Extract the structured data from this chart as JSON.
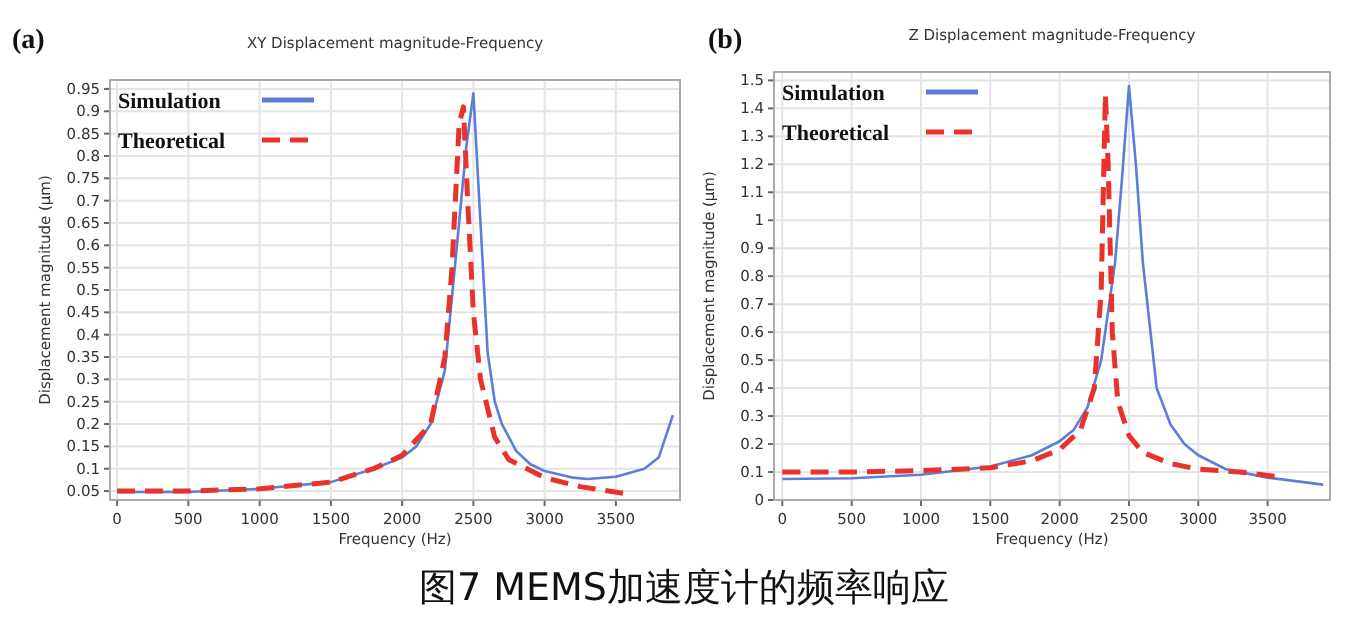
{
  "chart_data": [
    {
      "type": "line",
      "title": "XY Displacement magnitude-Frequency",
      "xlabel": "Frequency (Hz)",
      "ylabel": "Displacement magnitude (μm)",
      "annotations": [
        "(a)",
        "图7 MEMS加速度计的频率响应"
      ],
      "xlim": [
        -50,
        3950
      ],
      "xticks": [
        0,
        500,
        1000,
        1500,
        2000,
        2500,
        3000,
        3500
      ],
      "ylim": [
        0.03,
        0.97
      ],
      "yticks": [
        0.05,
        0.1,
        0.15,
        0.2,
        0.25,
        0.3,
        0.35,
        0.4,
        0.45,
        0.5,
        0.55,
        0.6,
        0.65,
        0.7,
        0.75,
        0.8,
        0.85,
        0.9,
        0.95
      ],
      "grid": true,
      "legend": "top left",
      "series": [
        {
          "name": "Simulation",
          "color": "#5b7fd6",
          "line_style": "solid",
          "x": [
            0,
            500,
            1000,
            1500,
            1800,
            2000,
            2100,
            2200,
            2300,
            2400,
            2450,
            2500,
            2550,
            2600,
            2650,
            2700,
            2800,
            2900,
            3000,
            3200,
            3300,
            3500,
            3700,
            3800,
            3900
          ],
          "values": [
            0.048,
            0.048,
            0.055,
            0.07,
            0.1,
            0.125,
            0.15,
            0.2,
            0.32,
            0.65,
            0.82,
            0.94,
            0.65,
            0.36,
            0.25,
            0.2,
            0.14,
            0.11,
            0.095,
            0.08,
            0.077,
            0.082,
            0.1,
            0.125,
            0.22
          ]
        },
        {
          "name": "Theoretical",
          "color": "#e8322b",
          "line_style": "dashed",
          "x": [
            0,
            500,
            1000,
            1500,
            1800,
            2000,
            2200,
            2300,
            2350,
            2400,
            2430,
            2460,
            2500,
            2550,
            2650,
            2750,
            3000,
            3250,
            3550
          ],
          "values": [
            0.05,
            0.05,
            0.055,
            0.07,
            0.1,
            0.13,
            0.2,
            0.35,
            0.55,
            0.87,
            0.91,
            0.7,
            0.45,
            0.3,
            0.17,
            0.12,
            0.08,
            0.06,
            0.045
          ]
        }
      ]
    },
    {
      "type": "line",
      "title": "Z Displacement magnitude-Frequency",
      "xlabel": "Frequency (Hz)",
      "ylabel": "Displacement magnitude (μm)",
      "annotations": [
        "(b)"
      ],
      "xlim": [
        -60,
        3950
      ],
      "xticks": [
        0,
        500,
        1000,
        1500,
        2000,
        2500,
        3000,
        3500
      ],
      "ylim": [
        0,
        1.53
      ],
      "yticks": [
        0,
        0.1,
        0.2,
        0.3,
        0.4,
        0.5,
        0.6,
        0.7,
        0.8,
        0.9,
        1,
        1.1,
        1.2,
        1.3,
        1.4,
        1.5
      ],
      "grid": true,
      "legend": "top left",
      "series": [
        {
          "name": "Simulation",
          "color": "#5b7fd6",
          "line_style": "solid",
          "x": [
            0,
            500,
            1000,
            1500,
            1800,
            2000,
            2100,
            2200,
            2300,
            2400,
            2450,
            2500,
            2550,
            2600,
            2700,
            2800,
            2900,
            3000,
            3200,
            3500,
            3900
          ],
          "values": [
            0.075,
            0.078,
            0.09,
            0.12,
            0.16,
            0.21,
            0.25,
            0.33,
            0.5,
            0.85,
            1.15,
            1.48,
            1.2,
            0.85,
            0.4,
            0.27,
            0.2,
            0.16,
            0.11,
            0.08,
            0.055
          ]
        },
        {
          "name": "Theoretical",
          "color": "#e8322b",
          "line_style": "dashed",
          "x": [
            0,
            500,
            1000,
            1500,
            1800,
            2000,
            2150,
            2250,
            2300,
            2330,
            2350,
            2380,
            2420,
            2500,
            2600,
            2800,
            3000,
            3300,
            3550
          ],
          "values": [
            0.1,
            0.1,
            0.105,
            0.115,
            0.14,
            0.18,
            0.25,
            0.4,
            0.75,
            1.45,
            1.2,
            0.6,
            0.35,
            0.23,
            0.17,
            0.13,
            0.11,
            0.1,
            0.085
          ]
        }
      ]
    }
  ]
}
